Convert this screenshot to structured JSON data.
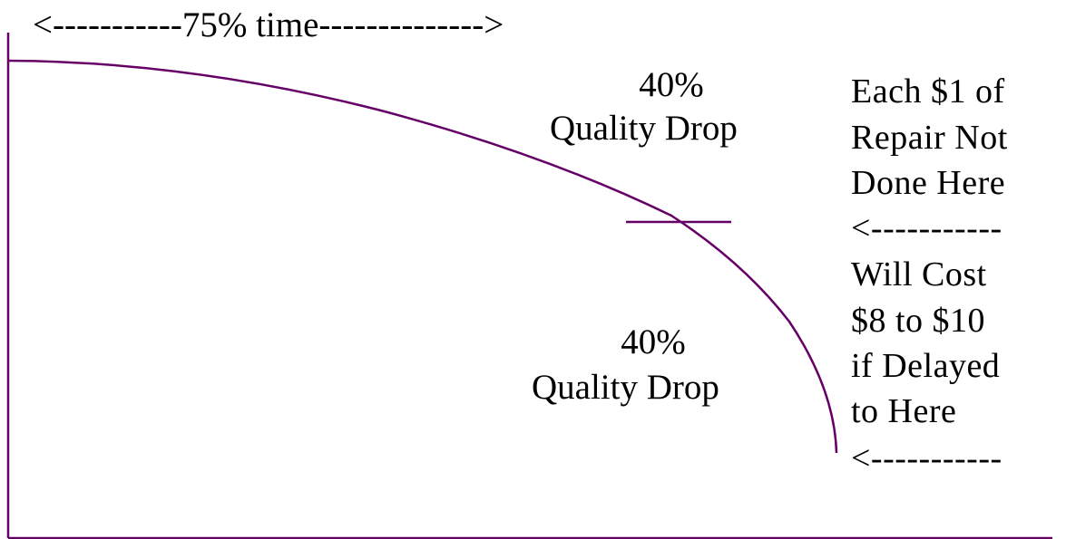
{
  "top_label": "<-----------75% time-------------->",
  "upper_zone": {
    "percent": "40%",
    "caption": "Quality Drop"
  },
  "lower_zone": {
    "percent": "40%",
    "caption": "Quality Drop"
  },
  "right_note": {
    "line1": "Each $1 of",
    "line2": "Repair Not",
    "line3": "Done Here",
    "arrow_upper": "<-----------",
    "line4": "Will Cost",
    "line5": "$8 to $10",
    "line6": "if Delayed",
    "line7": "to Here",
    "arrow_lower": "<-----------"
  },
  "colors": {
    "curve": "#660066",
    "axis": "#660066",
    "text": "#000000"
  }
}
